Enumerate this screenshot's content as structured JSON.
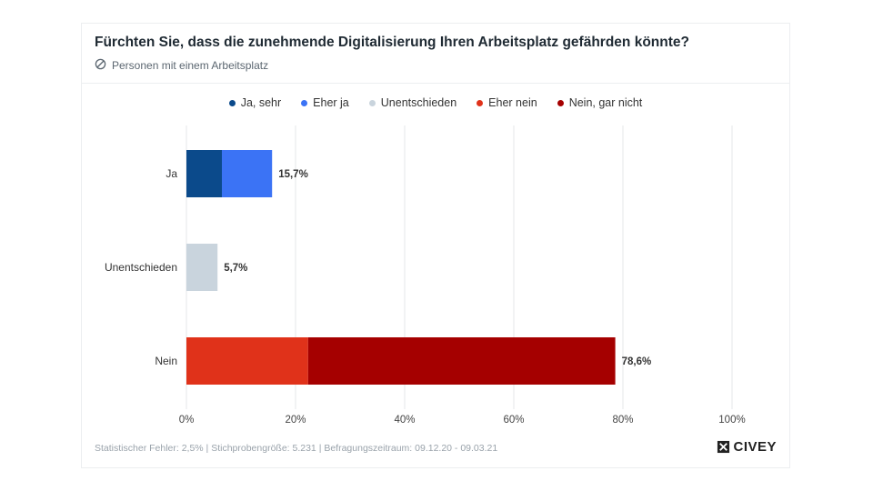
{
  "header": {
    "title": "Fürchten Sie, dass die zunehmende Digitalisierung Ihren Arbeitsplatz gefährden könnte?",
    "subtitle": "Personen mit einem Arbeitsplatz"
  },
  "legend": [
    {
      "label": "Ja, sehr",
      "color": "#0b4a8b"
    },
    {
      "label": "Eher ja",
      "color": "#3b73f5"
    },
    {
      "label": "Unentschieden",
      "color": "#c9d4dd"
    },
    {
      "label": "Eher nein",
      "color": "#e0321a"
    },
    {
      "label": "Nein, gar nicht",
      "color": "#a50000"
    }
  ],
  "chart_data": {
    "type": "bar",
    "orientation": "horizontal",
    "stacked": true,
    "categories": [
      "Ja",
      "Unentschieden",
      "Nein"
    ],
    "series": [
      {
        "name": "Ja, sehr",
        "color": "#0b4a8b",
        "values": [
          6.5,
          0,
          0
        ]
      },
      {
        "name": "Eher ja",
        "color": "#3b73f5",
        "values": [
          9.2,
          0,
          0
        ]
      },
      {
        "name": "Unentschieden",
        "color": "#c9d4dd",
        "values": [
          0,
          5.7,
          0
        ]
      },
      {
        "name": "Eher nein",
        "color": "#e0321a",
        "values": [
          0,
          0,
          22.3
        ]
      },
      {
        "name": "Nein, gar nicht",
        "color": "#a50000",
        "values": [
          0,
          0,
          56.3
        ]
      }
    ],
    "totals": [
      "15,7%",
      "5,7%",
      "78,6%"
    ],
    "xlim": [
      0,
      100
    ],
    "xticks": [
      0,
      20,
      40,
      60,
      80,
      100
    ],
    "xtick_labels": [
      "0%",
      "20%",
      "40%",
      "60%",
      "80%",
      "100%"
    ],
    "grid": true,
    "legend_position": "top"
  },
  "footer": {
    "note": "Statistischer Fehler: 2,5% | Stichprobengröße: 5.231 | Befragungszeitraum: 09.12.20 - 09.03.21",
    "brand": "CIVEY"
  }
}
